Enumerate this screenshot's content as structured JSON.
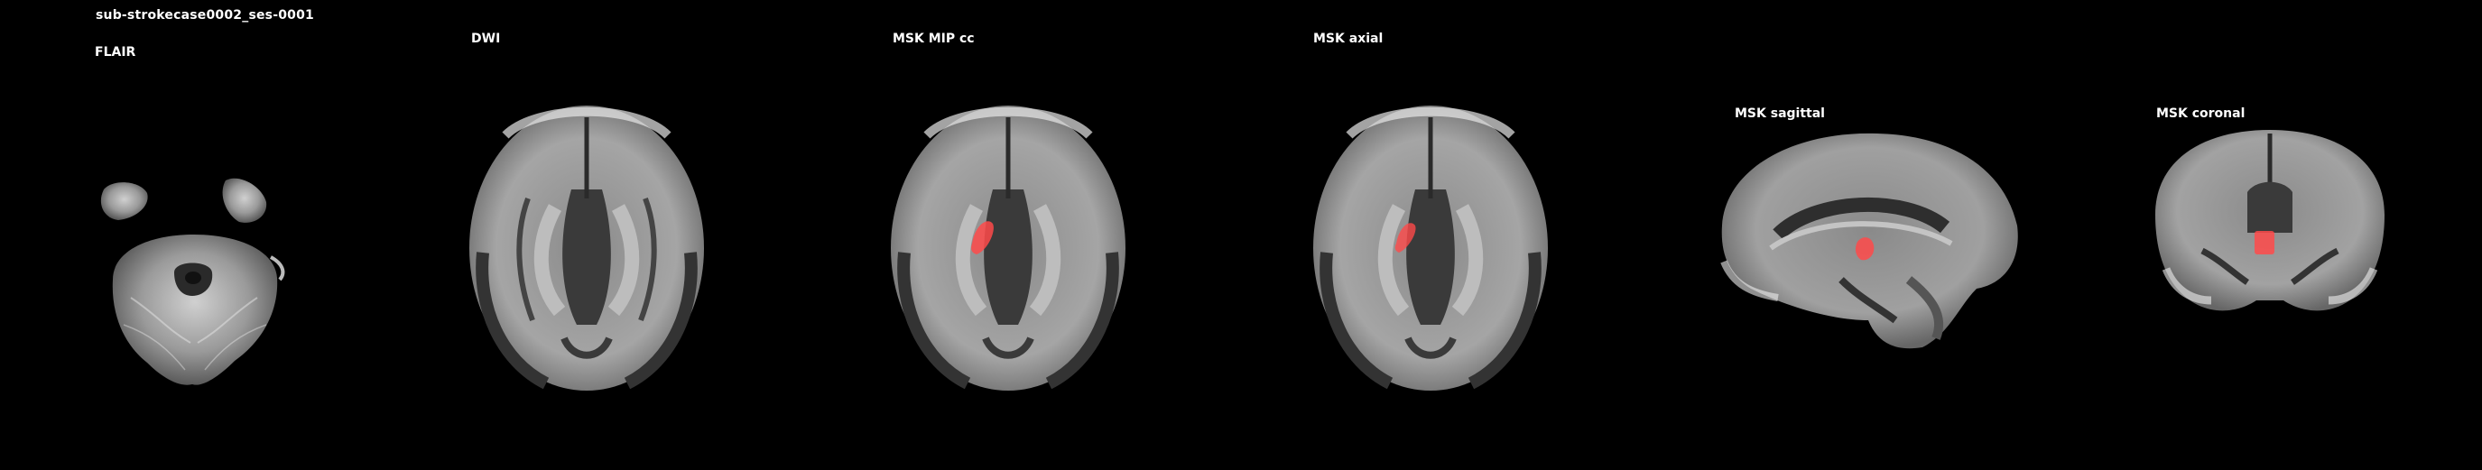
{
  "figure": {
    "subject_session": "sub-strokecase0002_ses-0001"
  },
  "panels": [
    {
      "id": "flair",
      "label": "FLAIR",
      "modality": "FLAIR axial slice (cerebellum level)"
    },
    {
      "id": "dwi",
      "label": "DWI",
      "modality": "DWI axial slice"
    },
    {
      "id": "msk-mip-cc",
      "label": "MSK MIP cc",
      "modality": "DWI axial with lesion mask MIP overlay"
    },
    {
      "id": "msk-axial",
      "label": "MSK axial",
      "modality": "DWI axial with lesion mask overlay"
    },
    {
      "id": "msk-sagittal",
      "label": "MSK sagittal",
      "modality": "DWI sagittal with lesion mask overlay"
    },
    {
      "id": "msk-coronal",
      "label": "MSK coronal",
      "modality": "DWI coronal with lesion mask overlay"
    }
  ],
  "colors": {
    "background": "#000000",
    "label": "#ffffff",
    "lesion_mask": "#ff4a4a",
    "tissue_light": "#b8b8b8",
    "tissue_mid": "#7d7d7d",
    "tissue_dark": "#3a3a3a"
  }
}
